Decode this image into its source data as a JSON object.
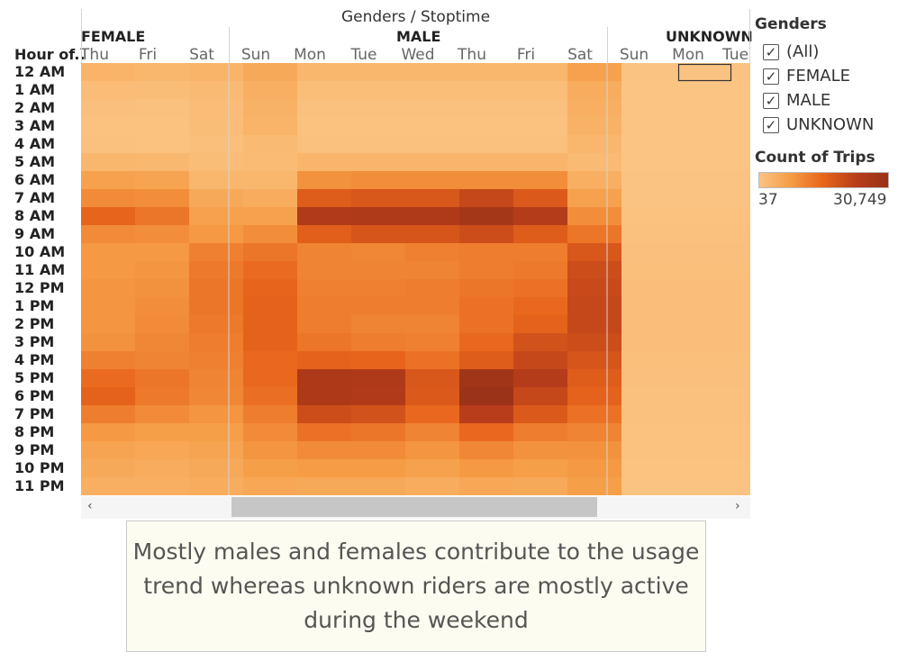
{
  "chart_data": {
    "type": "heatmap",
    "title": "Genders / Stoptime",
    "row_header": "Hour of..",
    "column_groups": [
      {
        "name": "FEMALE",
        "days": [
          "Thu",
          "Fri",
          "Sat"
        ]
      },
      {
        "name": "MALE",
        "days": [
          "Sun",
          "Mon",
          "Tue",
          "Wed",
          "Thu",
          "Fri",
          "Sat"
        ]
      },
      {
        "name": "UNKNOWN",
        "days": [
          "Sun",
          "Mon",
          "Tue"
        ]
      }
    ],
    "rows": [
      "12 AM",
      "1 AM",
      "2 AM",
      "3 AM",
      "4 AM",
      "5 AM",
      "6 AM",
      "7 AM",
      "8 AM",
      "9 AM",
      "10 AM",
      "11 AM",
      "12 PM",
      "1 PM",
      "2 PM",
      "3 PM",
      "4 PM",
      "5 PM",
      "6 PM",
      "7 PM",
      "8 PM",
      "9 PM",
      "10 PM",
      "11 PM"
    ],
    "values": [
      [
        3000,
        2500,
        3000,
        5000,
        2500,
        2500,
        2500,
        2500,
        2500,
        6500,
        200,
        200,
        200
      ],
      [
        1500,
        1300,
        2000,
        4000,
        1200,
        1200,
        1200,
        1200,
        1200,
        4500,
        100,
        100,
        100
      ],
      [
        900,
        800,
        1500,
        3500,
        800,
        800,
        800,
        800,
        800,
        4000,
        80,
        80,
        80
      ],
      [
        600,
        500,
        1300,
        3000,
        600,
        600,
        600,
        600,
        600,
        3500,
        60,
        60,
        60
      ],
      [
        700,
        600,
        1000,
        2000,
        700,
        700,
        700,
        700,
        700,
        2500,
        50,
        50,
        50
      ],
      [
        2500,
        2300,
        1300,
        1800,
        2800,
        2800,
        2800,
        2800,
        2800,
        2000,
        60,
        60,
        60
      ],
      [
        6500,
        6000,
        2500,
        2500,
        9000,
        9500,
        9500,
        9500,
        9500,
        4000,
        150,
        150,
        150
      ],
      [
        10000,
        9500,
        5000,
        4500,
        17000,
        18000,
        18000,
        21000,
        17500,
        6500,
        300,
        300,
        300
      ],
      [
        15500,
        13000,
        6500,
        6500,
        25000,
        25500,
        25500,
        28000,
        24000,
        9500,
        600,
        600,
        600
      ],
      [
        10000,
        9500,
        8000,
        9500,
        16500,
        18500,
        18500,
        20000,
        17000,
        13000,
        700,
        700,
        700
      ],
      [
        8000,
        8000,
        11500,
        13000,
        11000,
        10500,
        11500,
        12000,
        12000,
        18000,
        900,
        900,
        900
      ],
      [
        8000,
        8500,
        12500,
        14500,
        11000,
        11000,
        11000,
        12000,
        12500,
        20000,
        1000,
        1000,
        1000
      ],
      [
        8500,
        9000,
        13000,
        15500,
        11500,
        11500,
        12000,
        13000,
        13500,
        20500,
        1100,
        1100,
        1100
      ],
      [
        8500,
        9500,
        13000,
        16000,
        12000,
        12000,
        12000,
        13500,
        15000,
        21000,
        1100,
        1100,
        1100
      ],
      [
        8500,
        10000,
        12500,
        16000,
        12000,
        11000,
        11000,
        13500,
        16000,
        21000,
        1100,
        1100,
        1100
      ],
      [
        9000,
        10500,
        12000,
        16000,
        13000,
        12000,
        11500,
        15000,
        19000,
        20000,
        1100,
        1100,
        1100
      ],
      [
        11500,
        11000,
        11500,
        15000,
        16000,
        15500,
        13500,
        17000,
        21000,
        18500,
        1000,
        1000,
        1000
      ],
      [
        14500,
        13000,
        11000,
        15000,
        26000,
        25500,
        18000,
        29000,
        24000,
        17000,
        900,
        900,
        900
      ],
      [
        16000,
        12500,
        10500,
        14000,
        26000,
        25000,
        17500,
        30749,
        21000,
        16000,
        800,
        800,
        800
      ],
      [
        12000,
        10000,
        8500,
        12000,
        20000,
        19000,
        15000,
        23000,
        17500,
        13500,
        700,
        700,
        700
      ],
      [
        8000,
        7000,
        7000,
        10000,
        13500,
        13000,
        11000,
        15000,
        12000,
        11000,
        600,
        600,
        600
      ],
      [
        6000,
        5500,
        6000,
        8500,
        10000,
        10000,
        8500,
        10500,
        9000,
        9000,
        500,
        500,
        500
      ],
      [
        5000,
        4500,
        5000,
        7000,
        7500,
        7500,
        6500,
        8000,
        7000,
        8000,
        400,
        400,
        400
      ],
      [
        4000,
        4000,
        4500,
        5500,
        5000,
        5000,
        4500,
        5500,
        5000,
        7000,
        300,
        300,
        300
      ]
    ],
    "color_scale": {
      "title": "Count of Trips",
      "min": 37,
      "max": 30749,
      "min_label": "37",
      "max_label": "30,749",
      "colors": [
        "#fbc483",
        "#f59b43",
        "#e8651b",
        "#b83d1a",
        "#9a3318"
      ]
    }
  },
  "filter": {
    "title": "Genders",
    "items": [
      {
        "label": "(All)",
        "checked": true
      },
      {
        "label": "FEMALE",
        "checked": true
      },
      {
        "label": "MALE",
        "checked": true
      },
      {
        "label": "UNKNOWN",
        "checked": true
      }
    ]
  },
  "caption": "Mostly males and females contribute to the usage trend whereas unknown riders are mostly active during the weekend",
  "scrollbar": {
    "left_arrow": "‹",
    "right_arrow": "›"
  }
}
